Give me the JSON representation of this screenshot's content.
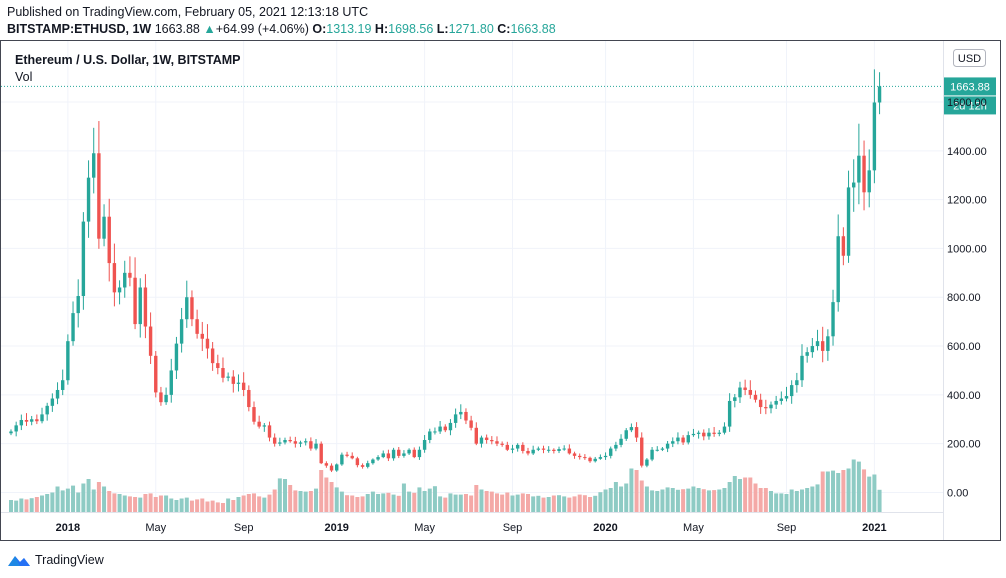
{
  "header": {
    "published": "Published on TradingView.com, February 05, 2021 12:13:18 UTC",
    "symbol": "BITSTAMP:ETHUSD, 1W",
    "close": "1663.88",
    "change": "+64.99 (+4.06%)",
    "o_label": "O:",
    "o": "1313.19",
    "h_label": "H:",
    "h": "1698.56",
    "l_label": "L:",
    "l": "1271.80",
    "c_label": "C:",
    "c": "1663.88"
  },
  "legend": {
    "title": "Ethereum / U.S. Dollar, 1W, BITSTAMP",
    "vol": "Vol"
  },
  "price_axis": {
    "currency": "USD",
    "last_price": "1663.88",
    "countdown": "2d 12h"
  },
  "footer": {
    "brand": "TradingView"
  },
  "colors": {
    "up": "#26a69a",
    "down": "#ef5350",
    "vol_up": "#8ecbc4",
    "vol_down": "#f4a9a7",
    "grid": "#f0f3fa",
    "last_line": "#26a69a"
  },
  "chart_data": {
    "type": "candlestick",
    "ylim": [
      -80,
      1850
    ],
    "yticks": [
      "0.00",
      "200.00",
      "400.00",
      "600.00",
      "800.00",
      "1000.00",
      "1200.00",
      "1400.00",
      "1600.00"
    ],
    "xticks": [
      {
        "label": "2018",
        "index": 11,
        "bold": true
      },
      {
        "label": "May",
        "index": 28,
        "bold": false
      },
      {
        "label": "Sep",
        "index": 45,
        "bold": false
      },
      {
        "label": "2019",
        "index": 63,
        "bold": true
      },
      {
        "label": "May",
        "index": 80,
        "bold": false
      },
      {
        "label": "Sep",
        "index": 97,
        "bold": false
      },
      {
        "label": "2020",
        "index": 115,
        "bold": true
      },
      {
        "label": "May",
        "index": 132,
        "bold": false
      },
      {
        "label": "Sep",
        "index": 150,
        "bold": false
      },
      {
        "label": "2021",
        "index": 167,
        "bold": true
      }
    ],
    "close": [
      250,
      275,
      297,
      290,
      300,
      292,
      320,
      355,
      385,
      420,
      460,
      620,
      735,
      805,
      1110,
      1290,
      1390,
      1040,
      1130,
      940,
      820,
      840,
      900,
      880,
      690,
      840,
      680,
      560,
      410,
      370,
      400,
      500,
      610,
      710,
      800,
      710,
      650,
      630,
      590,
      530,
      510,
      470,
      475,
      445,
      450,
      420,
      350,
      290,
      270,
      275,
      225,
      200,
      205,
      215,
      210,
      200,
      205,
      210,
      180,
      200,
      120,
      110,
      90,
      115,
      155,
      150,
      140,
      112,
      105,
      120,
      135,
      145,
      160,
      140,
      175,
      150,
      160,
      175,
      145,
      175,
      215,
      250,
      250,
      270,
      255,
      285,
      320,
      330,
      295,
      265,
      200,
      225,
      215,
      210,
      200,
      195,
      175,
      180,
      195,
      170,
      160,
      175,
      180,
      175,
      175,
      170,
      178,
      180,
      160,
      150,
      145,
      142,
      128,
      138,
      145,
      150,
      180,
      195,
      220,
      255,
      268,
      225,
      110,
      135,
      175,
      175,
      180,
      200,
      210,
      225,
      205,
      235,
      240,
      245,
      230,
      245,
      240,
      245,
      270,
      375,
      390,
      430,
      420,
      400,
      380,
      350,
      345,
      360,
      375,
      385,
      395,
      440,
      460,
      560,
      575,
      600,
      620,
      580,
      640,
      780,
      1050,
      970,
      1250,
      1270,
      1380,
      1230,
      1320,
      1598,
      1663.88
    ],
    "volume": [
      40,
      38,
      45,
      42,
      46,
      50,
      55,
      60,
      65,
      85,
      72,
      78,
      88,
      65,
      95,
      110,
      75,
      100,
      85,
      70,
      62,
      60,
      55,
      52,
      50,
      48,
      60,
      62,
      50,
      55,
      55,
      45,
      40,
      45,
      48,
      38,
      42,
      45,
      35,
      38,
      32,
      30,
      45,
      40,
      50,
      55,
      60,
      62,
      52,
      48,
      58,
      75,
      112,
      110,
      90,
      72,
      70,
      68,
      70,
      78,
      140,
      115,
      100,
      82,
      68,
      56,
      55,
      50,
      52,
      60,
      68,
      60,
      62,
      64,
      58,
      54,
      95,
      68,
      64,
      82,
      70,
      78,
      86,
      52,
      48,
      62,
      58,
      58,
      60,
      55,
      90,
      75,
      70,
      68,
      62,
      58,
      65,
      55,
      58,
      62,
      60,
      52,
      54,
      48,
      50,
      55,
      56,
      52,
      48,
      52,
      58,
      56,
      50,
      54,
      66,
      75,
      80,
      100,
      85,
      95,
      145,
      140,
      105,
      85,
      72,
      70,
      75,
      82,
      80,
      74,
      76,
      78,
      85,
      80,
      76,
      72,
      73,
      75,
      80,
      100,
      120,
      110,
      115,
      115,
      95,
      80,
      80,
      70,
      62,
      62,
      60,
      75,
      70,
      75,
      80,
      85,
      92,
      135,
      135,
      138,
      130,
      140,
      145,
      175,
      168,
      142,
      118,
      125,
      74
    ]
  }
}
